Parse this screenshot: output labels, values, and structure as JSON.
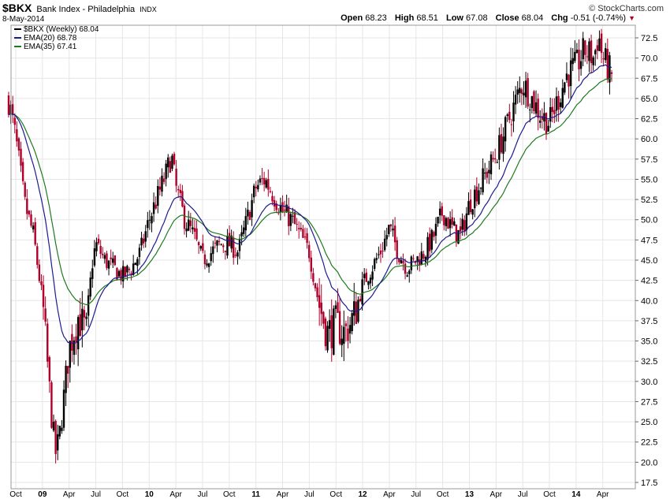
{
  "header": {
    "symbol": "$BKX",
    "name": "Bank Index - Philadelphia",
    "exchange": "INDX",
    "date": "8-May-2014",
    "brand": "© StockCharts.com",
    "open_label": "Open",
    "open": "68.23",
    "high_label": "High",
    "high": "68.51",
    "low_label": "Low",
    "low": "67.08",
    "close_label": "Close",
    "close": "68.04",
    "chg_label": "Chg",
    "chg": "-0.51 (-0.74%)",
    "chg_arrow": "▼"
  },
  "legend": [
    {
      "label": "$BKX (Weekly) 68.04",
      "color": "#000000"
    },
    {
      "label": "EMA(20) 68.78",
      "color": "#1b1b8f"
    },
    {
      "label": "EMA(35) 67.41",
      "color": "#1f7a1f"
    }
  ],
  "colors": {
    "up": "#000000",
    "down": "#b0002a",
    "ema20": "#1b1b8f",
    "ema35": "#1f7a1f",
    "grid": "#e6e6e6"
  },
  "chart_data": {
    "type": "candlestick",
    "title": "$BKX Bank Index - Philadelphia INDX",
    "period": "weekly",
    "ylim": [
      17.5,
      72.5
    ],
    "y_ticks": [
      17.5,
      20.0,
      22.5,
      25.0,
      27.5,
      30.0,
      32.5,
      35.0,
      37.5,
      40.0,
      42.5,
      45.0,
      47.5,
      50.0,
      52.5,
      55.0,
      57.5,
      60.0,
      62.5,
      65.0,
      67.5,
      70.0,
      72.5
    ],
    "x_ticks": [
      {
        "label": "Oct",
        "month": 0,
        "bold": false
      },
      {
        "label": "09",
        "month": 3,
        "bold": true
      },
      {
        "label": "Apr",
        "month": 6,
        "bold": false
      },
      {
        "label": "Jul",
        "month": 9,
        "bold": false
      },
      {
        "label": "Oct",
        "month": 12,
        "bold": false
      },
      {
        "label": "10",
        "month": 15,
        "bold": true
      },
      {
        "label": "Apr",
        "month": 18,
        "bold": false
      },
      {
        "label": "Jul",
        "month": 21,
        "bold": false
      },
      {
        "label": "Oct",
        "month": 24,
        "bold": false
      },
      {
        "label": "11",
        "month": 27,
        "bold": true
      },
      {
        "label": "Apr",
        "month": 30,
        "bold": false
      },
      {
        "label": "Jul",
        "month": 33,
        "bold": false
      },
      {
        "label": "Oct",
        "month": 36,
        "bold": false
      },
      {
        "label": "12",
        "month": 39,
        "bold": true
      },
      {
        "label": "Apr",
        "month": 42,
        "bold": false
      },
      {
        "label": "Jul",
        "month": 45,
        "bold": false
      },
      {
        "label": "Oct",
        "month": 48,
        "bold": false
      },
      {
        "label": "13",
        "month": 51,
        "bold": true
      },
      {
        "label": "Apr",
        "month": 54,
        "bold": false
      },
      {
        "label": "Jul",
        "month": 57,
        "bold": false
      },
      {
        "label": "Oct",
        "month": 60,
        "bold": false
      },
      {
        "label": "14",
        "month": 63,
        "bold": true
      },
      {
        "label": "Apr",
        "month": 66,
        "bold": false
      }
    ],
    "month_span": [
      -1,
      68
    ],
    "close_path": [
      [
        -1,
        66
      ],
      [
        0,
        60
      ],
      [
        1,
        52
      ],
      [
        2,
        48
      ],
      [
        3,
        40
      ],
      [
        3.5,
        33
      ],
      [
        4,
        26
      ],
      [
        4.5,
        21
      ],
      [
        5,
        24
      ],
      [
        6,
        34
      ],
      [
        7,
        38
      ],
      [
        8,
        36
      ],
      [
        8.5,
        44
      ],
      [
        9,
        47
      ],
      [
        10,
        45
      ],
      [
        11,
        44
      ],
      [
        12,
        43
      ],
      [
        13,
        44
      ],
      [
        14,
        46
      ],
      [
        15,
        50
      ],
      [
        16,
        53
      ],
      [
        17,
        56
      ],
      [
        17.5,
        58
      ],
      [
        18,
        54
      ],
      [
        19,
        50
      ],
      [
        20,
        48
      ],
      [
        21,
        45
      ],
      [
        22,
        46
      ],
      [
        23,
        47
      ],
      [
        24,
        47
      ],
      [
        25,
        46
      ],
      [
        26,
        50
      ],
      [
        27,
        54
      ],
      [
        28,
        55
      ],
      [
        29,
        53
      ],
      [
        30,
        51
      ],
      [
        31,
        50
      ],
      [
        32,
        48
      ],
      [
        33,
        46
      ],
      [
        34,
        40
      ],
      [
        35,
        36
      ],
      [
        36,
        37
      ],
      [
        37,
        36
      ],
      [
        38,
        38
      ],
      [
        39,
        42
      ],
      [
        40,
        44
      ],
      [
        41,
        46
      ],
      [
        42,
        49
      ],
      [
        43,
        46
      ],
      [
        44,
        44
      ],
      [
        45,
        45
      ],
      [
        46,
        46
      ],
      [
        47,
        48
      ],
      [
        48,
        51
      ],
      [
        49,
        49
      ],
      [
        50,
        48
      ],
      [
        51,
        52
      ],
      [
        52,
        54
      ],
      [
        53,
        56
      ],
      [
        54,
        58
      ],
      [
        55,
        61
      ],
      [
        56,
        64
      ],
      [
        57,
        67
      ],
      [
        58,
        65
      ],
      [
        59,
        63
      ],
      [
        60,
        62
      ],
      [
        61,
        65
      ],
      [
        62,
        68
      ],
      [
        63,
        69
      ],
      [
        64,
        71
      ],
      [
        65,
        70
      ],
      [
        65.5,
        73
      ],
      [
        66,
        70
      ],
      [
        67,
        68.04
      ]
    ],
    "series": [
      {
        "name": "$BKX (Weekly)",
        "last": 68.04
      },
      {
        "name": "EMA(20)",
        "last": 68.78,
        "period_weeks": 20
      },
      {
        "name": "EMA(35)",
        "last": 67.41,
        "period_weeks": 35
      }
    ],
    "last_ohlc": {
      "open": 68.23,
      "high": 68.51,
      "low": 67.08,
      "close": 68.04
    }
  }
}
